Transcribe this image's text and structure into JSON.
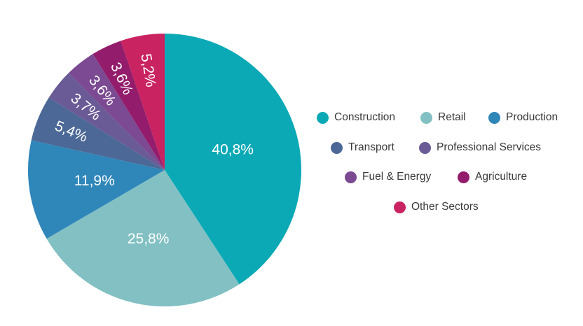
{
  "chart_data": {
    "type": "pie",
    "categories": [
      "Construction",
      "Retail",
      "Production",
      "Transport",
      "Professional Services",
      "Fuel & Energy",
      "Agriculture",
      "Other Sectors"
    ],
    "values": [
      40.8,
      25.8,
      11.9,
      5.4,
      3.7,
      3.6,
      3.6,
      5.2
    ],
    "labels": [
      "40,8%",
      "25,8%",
      "11,9%",
      "5,4%",
      "3,7%",
      "3,6%",
      "3,6%",
      "5,2%"
    ],
    "colors": [
      "#0ba9b6",
      "#82c0c3",
      "#2f86b9",
      "#4c6896",
      "#6a5a96",
      "#7b4a92",
      "#931d6c",
      "#c92361"
    ],
    "legend_position": "right"
  },
  "legend": {
    "items": [
      {
        "label": "Construction"
      },
      {
        "label": "Retail"
      },
      {
        "label": "Production"
      },
      {
        "label": "Transport"
      },
      {
        "label": "Professional Services"
      },
      {
        "label": "Fuel & Energy"
      },
      {
        "label": "Agriculture"
      },
      {
        "label": "Other Sectors"
      }
    ]
  }
}
